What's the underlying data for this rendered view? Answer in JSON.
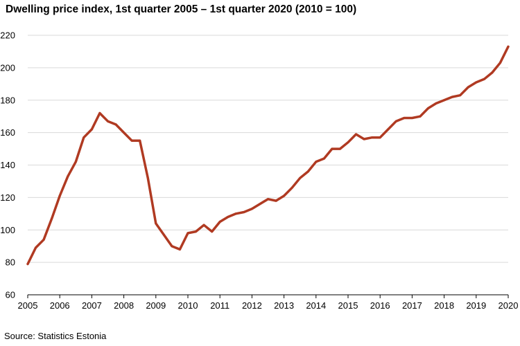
{
  "title": "Dwelling price index, 1st quarter 2005 – 1st quarter 2020 (2010 = 100)",
  "source": "Source: Statistics Estonia",
  "chart_data": {
    "type": "line",
    "title": "Dwelling price index, 1st quarter 2005 – 1st quarter 2020 (2010 = 100)",
    "xlabel": "",
    "ylabel": "",
    "ylim": [
      60,
      220
    ],
    "xlim": [
      2005,
      2020
    ],
    "yticks": [
      60,
      80,
      100,
      120,
      140,
      160,
      180,
      200,
      220
    ],
    "xticks": [
      "2005",
      "2006",
      "2007",
      "2008",
      "2009",
      "2010",
      "2011",
      "2012",
      "2013",
      "2014",
      "2015",
      "2016",
      "2017",
      "2018",
      "2019",
      "2020"
    ],
    "grid": true,
    "legend": "none",
    "line_color": "#B03A22",
    "series": [
      {
        "x": [
          "2005 Q1",
          "2005 Q2",
          "2005 Q3",
          "2005 Q4",
          "2006 Q1",
          "2006 Q2",
          "2006 Q3",
          "2006 Q4",
          "2007 Q1",
          "2007 Q2",
          "2007 Q3",
          "2007 Q4",
          "2008 Q1",
          "2008 Q2",
          "2008 Q3",
          "2008 Q4",
          "2009 Q1",
          "2009 Q2",
          "2009 Q3",
          "2009 Q4",
          "2010 Q1",
          "2010 Q2",
          "2010 Q3",
          "2010 Q4",
          "2011 Q1",
          "2011 Q2",
          "2011 Q3",
          "2011 Q4",
          "2012 Q1",
          "2012 Q2",
          "2012 Q3",
          "2012 Q4",
          "2013 Q1",
          "2013 Q2",
          "2013 Q3",
          "2013 Q4",
          "2014 Q1",
          "2014 Q2",
          "2014 Q3",
          "2014 Q4",
          "2015 Q1",
          "2015 Q2",
          "2015 Q3",
          "2015 Q4",
          "2016 Q1",
          "2016 Q2",
          "2016 Q3",
          "2016 Q4",
          "2017 Q1",
          "2017 Q2",
          "2017 Q3",
          "2017 Q4",
          "2018 Q1",
          "2018 Q2",
          "2018 Q3",
          "2018 Q4",
          "2019 Q1",
          "2019 Q2",
          "2019 Q3",
          "2019 Q4",
          "2020 Q1"
        ],
        "values": [
          79,
          89,
          94,
          107,
          121,
          133,
          142,
          157,
          162,
          172,
          167,
          165,
          160,
          155,
          155,
          132,
          104,
          97,
          90,
          88,
          98,
          99,
          103,
          99,
          105,
          108,
          110,
          111,
          113,
          116,
          119,
          118,
          121,
          126,
          132,
          136,
          142,
          144,
          150,
          150,
          154,
          159,
          156,
          157,
          157,
          162,
          167,
          169,
          169,
          170,
          175,
          178,
          180,
          182,
          183,
          188,
          191,
          193,
          197,
          203,
          213
        ]
      }
    ]
  }
}
